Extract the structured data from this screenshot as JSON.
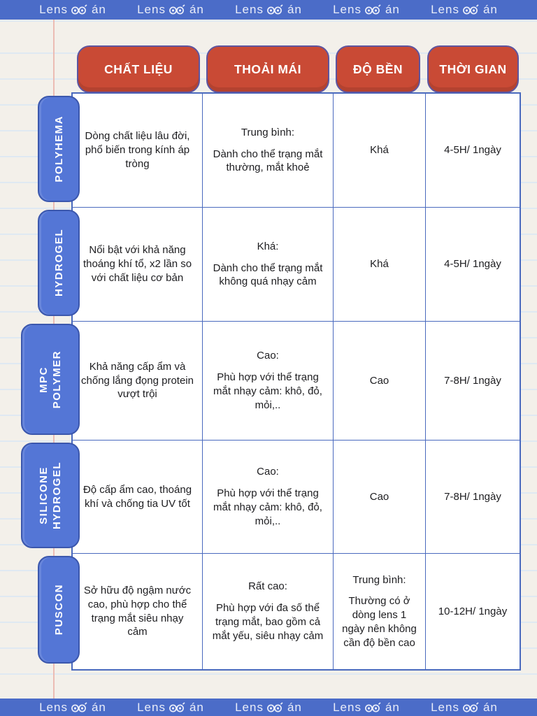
{
  "banner": {
    "logo_prefix": "Lens",
    "logo_suffix": "án",
    "repeat_count": 5
  },
  "chart_data": {
    "type": "table",
    "columns": [
      "CHẤT LIỆU",
      "THOẢI MÁI",
      "ĐỘ BỀN",
      "THỜI GIAN"
    ],
    "rows": [
      {
        "label_lines": [
          "POLYHEMA"
        ],
        "cells": [
          [
            "Dòng chất liệu lâu đời, phổ biến trong kính áp tròng"
          ],
          [
            "Trung bình:",
            "Dành cho thể trạng mắt thường, mắt khoẻ"
          ],
          [
            "Khá"
          ],
          [
            "4-5H/ 1ngày"
          ]
        ]
      },
      {
        "label_lines": [
          "HYDROGEL"
        ],
        "cells": [
          [
            "Nổi bật với khả năng thoáng khí tổ, x2 lần so với chất liệu cơ bản"
          ],
          [
            "Khá:",
            "Dành cho thể trạng mắt không quá nhạy cảm"
          ],
          [
            "Khá"
          ],
          [
            "4-5H/ 1ngày"
          ]
        ]
      },
      {
        "label_lines": [
          "MPC",
          "POLYMER"
        ],
        "cells": [
          [
            "Khả năng cấp ẩm và chống lắng đọng protein vượt trội"
          ],
          [
            "Cao:",
            "Phù hợp với thể trạng mắt nhạy cảm: khô, đỏ, mỏi,.."
          ],
          [
            "Cao"
          ],
          [
            "7-8H/ 1ngày"
          ]
        ]
      },
      {
        "label_lines": [
          "SILICONE",
          "HYDROGEL"
        ],
        "cells": [
          [
            "Độ cấp ẩm cao, thoáng khí và chống tia UV tốt"
          ],
          [
            "Cao:",
            "Phù hợp với thể trạng mắt nhạy cảm: khô, đỏ, mỏi,.."
          ],
          [
            "Cao"
          ],
          [
            "7-8H/ 1ngày"
          ]
        ]
      },
      {
        "label_lines": [
          "PUSCON"
        ],
        "cells": [
          [
            "Sở hữu độ ngậm nước cao, phù hợp cho thể trạng mắt siêu nhạy cảm"
          ],
          [
            "Rất cao:",
            "Phù hợp với đa số thể trạng mắt, bao gồm cả mắt yếu, siêu nhạy cảm"
          ],
          [
            "Trung bình:",
            "Thường có ở dòng lens 1 ngày nên không cần độ bền cao"
          ],
          [
            "10-12H/ 1ngày"
          ]
        ]
      }
    ]
  },
  "colors": {
    "banner_blue": "#4b6cc8",
    "header_red": "#c94a35",
    "label_blue": "#5476d6",
    "label_border_blue": "#3b57ad",
    "table_border_blue": "#4a6abe",
    "paper": "#f3f0ea",
    "rule_line": "#dfe9f2",
    "margin_line": "#ecbcb4",
    "text": "#1d1d20"
  }
}
